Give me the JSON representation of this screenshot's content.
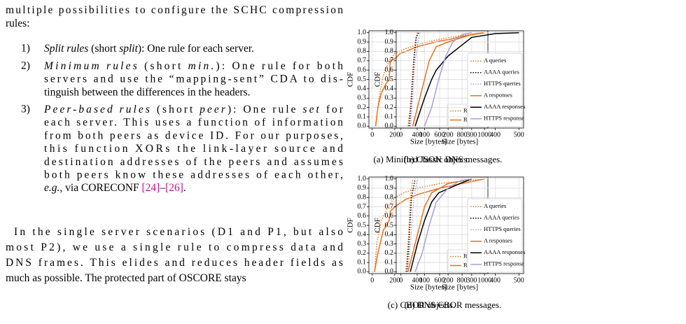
{
  "text": {
    "intro": [
      [
        {
          "text": "multiple possibilities to configure the SCHC compression"
        }
      ],
      [
        {
          "text": "rules:"
        }
      ]
    ],
    "list": [
      {
        "label": "1)",
        "lines": [
          [
            {
              "text": "Split rules",
              "italic": true
            },
            {
              "text": " (short "
            },
            {
              "text": "split",
              "italic": true
            },
            {
              "text": "): One rule for each server."
            }
          ]
        ]
      },
      {
        "label": "2)",
        "lines": [
          [
            {
              "text": "Minimum rules",
              "italic": true
            },
            {
              "text": " (short "
            },
            {
              "text": "min.",
              "italic": true
            },
            {
              "text": "): One rule for both"
            }
          ],
          [
            {
              "text": "servers and use the “mapping-sent” CDA to dis-"
            }
          ],
          [
            {
              "text": "tinguish between the differences in the headers."
            }
          ]
        ]
      },
      {
        "label": "3)",
        "lines": [
          [
            {
              "text": "Peer-based rules",
              "italic": true
            },
            {
              "text": " (short "
            },
            {
              "text": "peer",
              "italic": true
            },
            {
              "text": "): One rule "
            },
            {
              "text": "set",
              "italic": true
            },
            {
              "text": " for"
            }
          ],
          [
            {
              "text": "each server. This uses a function of information"
            }
          ],
          [
            {
              "text": "from both peers as device ID. For our purposes,"
            }
          ],
          [
            {
              "text": "this function XORs the link-layer source and"
            }
          ],
          [
            {
              "text": "destination addresses of the peers and assumes"
            }
          ],
          [
            {
              "text": "both peers know these addresses of each other,"
            }
          ],
          [
            {
              "text": "e.g.,",
              "italic": true
            },
            {
              "text": " via CORECONF "
            },
            {
              "text": "[24]",
              "cite": true
            },
            {
              "text": "–"
            },
            {
              "text": "[26]",
              "cite": true
            },
            {
              "text": "."
            }
          ]
        ]
      }
    ],
    "paragraph": [
      [
        {
          "text": "In the single server scenarios (D1 and P1, but also"
        }
      ],
      [
        {
          "text": "most P2), we use a single rule to compress data and"
        }
      ],
      [
        {
          "text": "DNS frames. This elides and reduces header fields as"
        }
      ],
      [
        {
          "text": "much as possible. The protected part of OSCORE stays"
        }
      ]
    ]
  },
  "chart_data": [
    {
      "type": "line",
      "caption": "(a) Minified JSON objecs.",
      "xlabel": "Size [bytes]",
      "ylabel": "CDF",
      "grid": true,
      "legend": "lower right",
      "xlim": [
        -30,
        1030
      ],
      "xticks": [
        0,
        200,
        400,
        600,
        800,
        1000
      ],
      "ylim": [
        -0.02,
        1.02
      ],
      "yticks": [
        {
          "value": 0,
          "label": "0.0"
        },
        0.1,
        0.2,
        0.3,
        0.4,
        0.5,
        0.6,
        0.7,
        0.8,
        0.9,
        {
          "value": 1,
          "label": "1.0"
        }
      ],
      "series": [
        {
          "name": "Requests",
          "color": "#e8701a",
          "dashed": true,
          "x": [
            30,
            60,
            100,
            150,
            200,
            300,
            400,
            500,
            600,
            800,
            1000
          ],
          "values": [
            0,
            0.3,
            0.55,
            0.7,
            0.78,
            0.83,
            0.87,
            0.9,
            0.93,
            0.97,
            1
          ]
        },
        {
          "name": "Responses",
          "color": "#e8701a",
          "dashed": false,
          "x": [
            30,
            50,
            80,
            120,
            150,
            160,
            200,
            250,
            300,
            400,
            500,
            600,
            700,
            800,
            1000
          ],
          "values": [
            0,
            0.2,
            0.35,
            0.45,
            0.5,
            0.7,
            0.72,
            0.78,
            0.8,
            0.85,
            0.88,
            0.91,
            0.93,
            0.96,
            1
          ]
        }
      ]
    },
    {
      "type": "line",
      "caption": "(b) Classic DNS messages.",
      "xlabel": "Size [bytes]",
      "ylabel": "CDF",
      "grid": true,
      "legend": "lower right",
      "xlim": [
        -20,
        520
      ],
      "xticks": [
        0,
        100,
        200,
        300,
        400,
        500
      ],
      "ylim": [
        -0.02,
        1.02
      ],
      "yticks": [
        {
          "value": 0,
          "label": "0.0"
        },
        0.1,
        0.2,
        0.3,
        0.4,
        0.5,
        0.6,
        0.7,
        0.8,
        0.9,
        {
          "value": 1,
          "label": "1.0"
        }
      ],
      "series": [
        {
          "name": "A queries",
          "color": "#e8701a",
          "dashed": true,
          "x": [
            30,
            40,
            50,
            60,
            70
          ],
          "values": [
            0,
            0.2,
            0.6,
            0.9,
            1
          ]
        },
        {
          "name": "AAAA queries",
          "color": "#000000",
          "dashed": true,
          "x": [
            35,
            45,
            55,
            65,
            75
          ],
          "values": [
            0,
            0.3,
            0.7,
            0.95,
            1
          ]
        },
        {
          "name": "HTTPS queries",
          "color": "#a89fd8",
          "dashed": true,
          "x": [
            40,
            50,
            60,
            80
          ],
          "values": [
            0,
            0.3,
            0.7,
            1
          ]
        },
        {
          "name": "A responses",
          "color": "#e8701a",
          "dashed": false,
          "x": [
            50,
            80,
            100,
            120,
            150,
            200,
            300,
            350
          ],
          "values": [
            0,
            0.3,
            0.5,
            0.7,
            0.85,
            0.9,
            0.98,
            1
          ]
        },
        {
          "name": "AAAA responses",
          "color": "#000000",
          "dashed": false,
          "x": [
            60,
            100,
            130,
            150,
            200,
            250,
            300,
            400,
            500
          ],
          "values": [
            0,
            0.3,
            0.5,
            0.6,
            0.75,
            0.85,
            0.95,
            0.99,
            1
          ]
        },
        {
          "name": "HTTPS response",
          "color": "#a89fd8",
          "dashed": false,
          "x": [
            100,
            130,
            160,
            190,
            220,
            260,
            300
          ],
          "values": [
            0,
            0.2,
            0.5,
            0.75,
            0.9,
            0.98,
            1
          ]
        }
      ]
    },
    {
      "type": "line",
      "caption": "(c) CBOR objects.",
      "xlabel": "Size [bytes]",
      "ylabel": "CDF",
      "grid": true,
      "legend": "lower right",
      "xlim": [
        -30,
        1030
      ],
      "xticks": [
        0,
        200,
        400,
        600,
        800,
        1000
      ],
      "ylim": [
        -0.02,
        1.02
      ],
      "yticks": [
        {
          "value": 0,
          "label": "0.0"
        },
        0.1,
        0.2,
        0.3,
        0.4,
        0.5,
        0.6,
        0.7,
        0.8,
        0.9,
        {
          "value": 1,
          "label": "1.0"
        }
      ],
      "series": [
        {
          "name": "Requests",
          "color": "#e8701a",
          "dashed": true,
          "x": [
            20,
            40,
            80,
            150,
            200,
            300,
            400,
            600,
            1000
          ],
          "values": [
            0,
            0.3,
            0.55,
            0.72,
            0.8,
            0.86,
            0.9,
            0.95,
            1
          ]
        },
        {
          "name": "Responses",
          "color": "#e8701a",
          "dashed": false,
          "x": [
            20,
            50,
            100,
            150,
            160,
            200,
            300,
            400,
            600,
            800,
            1000
          ],
          "values": [
            0,
            0.2,
            0.45,
            0.55,
            0.65,
            0.7,
            0.78,
            0.83,
            0.9,
            0.95,
            1
          ]
        }
      ]
    },
    {
      "type": "line",
      "caption": "(d) DNS CBOR messages.",
      "xlabel": "Size [bytes]",
      "ylabel": "CDF",
      "grid": true,
      "legend": "lower right",
      "xlim": [
        -20,
        520
      ],
      "xticks": [
        0,
        100,
        200,
        300,
        400,
        500
      ],
      "ylim": [
        -0.02,
        1.02
      ],
      "yticks": [
        {
          "value": 0,
          "label": "0.0"
        },
        0.1,
        0.2,
        0.3,
        0.4,
        0.5,
        0.6,
        0.7,
        0.8,
        0.9,
        {
          "value": 1,
          "label": "1.0"
        }
      ],
      "series": [
        {
          "name": "A queries",
          "color": "#e8701a",
          "dashed": true,
          "x": [
            20,
            30,
            40,
            50
          ],
          "values": [
            0,
            0.3,
            0.8,
            1
          ]
        },
        {
          "name": "AAAA queries",
          "color": "#000000",
          "dashed": true,
          "x": [
            25,
            35,
            45,
            60
          ],
          "values": [
            0,
            0.35,
            0.8,
            1
          ]
        },
        {
          "name": "HTTPS queries",
          "color": "#a89fd8",
          "dashed": true,
          "x": [
            30,
            40,
            55,
            70
          ],
          "values": [
            0,
            0.3,
            0.8,
            1
          ]
        },
        {
          "name": "A responses",
          "color": "#e8701a",
          "dashed": false,
          "x": [
            30,
            50,
            80,
            100,
            130,
            200,
            300
          ],
          "values": [
            0,
            0.2,
            0.5,
            0.7,
            0.85,
            0.95,
            1
          ]
        },
        {
          "name": "AAAA responses",
          "color": "#000000",
          "dashed": false,
          "x": [
            40,
            70,
            100,
            130,
            160,
            250,
            300
          ],
          "values": [
            0,
            0.3,
            0.55,
            0.75,
            0.85,
            0.95,
            1
          ]
        },
        {
          "name": "HTTPS response",
          "color": "#a89fd8",
          "dashed": false,
          "x": [
            60,
            90,
            120,
            150,
            200,
            250,
            300
          ],
          "values": [
            0,
            0.2,
            0.5,
            0.75,
            0.9,
            0.98,
            1
          ]
        }
      ]
    }
  ]
}
